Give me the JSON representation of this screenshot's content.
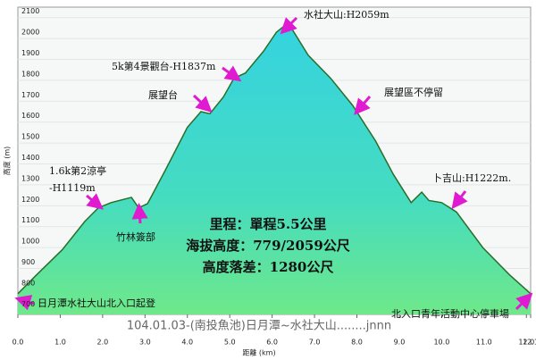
{
  "chart_data": {
    "type": "area",
    "title": "104.01.03-(南投魚池)日月潭~水社大山........jnnn",
    "x_label": "距離 (km)",
    "y_label": "高度 (m)",
    "x": [
      0,
      0.42,
      1.05,
      1.58,
      1.9,
      2.2,
      2.68,
      2.85,
      3.06,
      3.48,
      4.0,
      4.32,
      4.53,
      4.85,
      5.1,
      5.37,
      5.8,
      6.1,
      6.28,
      6.47,
      6.85,
      7.38,
      7.9,
      8.44,
      8.86,
      9.28,
      9.53,
      9.7,
      10.0,
      10.35,
      10.97,
      11.6,
      12.1
    ],
    "values": [
      779,
      865,
      990,
      1125,
      1190,
      1215,
      1240,
      1190,
      1210,
      1370,
      1575,
      1650,
      1640,
      1720,
      1810,
      1835,
      1940,
      2030,
      2059,
      2045,
      1920,
      1810,
      1680,
      1510,
      1350,
      1215,
      1265,
      1225,
      1215,
      1170,
      1000,
      870,
      779
    ],
    "color": "#2a6e2a",
    "xlim": [
      0,
      12.1
    ],
    "ylim": [
      680,
      2150
    ],
    "xticks": [
      {
        "value": 0,
        "label": "0.0"
      },
      {
        "value": 1,
        "label": "1.0"
      },
      {
        "value": 2,
        "label": "2.0"
      },
      {
        "value": 3,
        "label": "3.0"
      },
      {
        "value": 4,
        "label": "4.0"
      },
      {
        "value": 5,
        "label": "5.0"
      },
      {
        "value": 6,
        "label": "6.0"
      },
      {
        "value": 7,
        "label": "7.0"
      },
      {
        "value": 8,
        "label": "8.0"
      },
      {
        "value": 9,
        "label": "9.0"
      },
      {
        "value": 10,
        "label": "10.0"
      },
      {
        "value": 11,
        "label": "11.0"
      },
      {
        "value": 12,
        "label": "12.0"
      },
      12.1
    ],
    "yticks": [
      700,
      800,
      900,
      1000,
      1100,
      1200,
      1300,
      1400,
      1500,
      1600,
      1700,
      1800,
      1900,
      2000,
      2100
    ],
    "grid": true,
    "annotations": [
      "水社大山:H2059m",
      "5k第4景觀台-H1837m",
      "展望台",
      "展望區不停留",
      "1.6k第2涼亭",
      "-H1119m",
      "卜吉山:H1222m.",
      "竹林簽部",
      "日月潭水社大山北入口起登",
      "北入口青年活動中心停車場"
    ],
    "info": [
      "里程：單程5.5公里",
      "海拔高度：779/2059公尺",
      "高度落差：1280公尺"
    ]
  }
}
